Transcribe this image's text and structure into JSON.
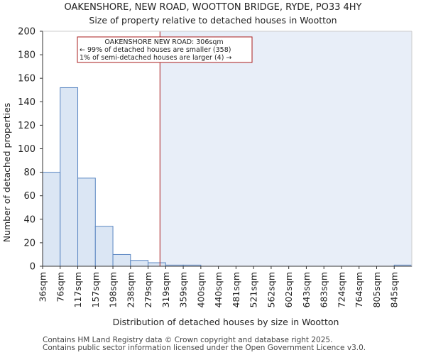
{
  "chart_data": {
    "type": "bar",
    "title_line1": "OAKENSHORE, NEW ROAD, WOOTTON BRIDGE, RYDE, PO33 4HY",
    "title_line2": "Size of property relative to detached houses in Wootton",
    "xlabel": "Distribution of detached houses by size in Wootton",
    "ylabel": "Number of detached properties",
    "categories": [
      "36sqm",
      "76sqm",
      "117sqm",
      "157sqm",
      "198sqm",
      "238sqm",
      "279sqm",
      "319sqm",
      "359sqm",
      "400sqm",
      "440sqm",
      "481sqm",
      "521sqm",
      "562sqm",
      "602sqm",
      "643sqm",
      "683sqm",
      "724sqm",
      "764sqm",
      "805sqm",
      "845sqm"
    ],
    "values": [
      80,
      152,
      75,
      34,
      10,
      5,
      3,
      1,
      1,
      0,
      0,
      0,
      0,
      0,
      0,
      0,
      0,
      0,
      0,
      0,
      1
    ],
    "ylim": [
      0,
      200
    ],
    "yticks": [
      0,
      20,
      40,
      60,
      80,
      100,
      120,
      140,
      160,
      180,
      200
    ],
    "marker_value_sqm": 306,
    "annotation": {
      "line1": "OAKENSHORE NEW ROAD: 306sqm",
      "line2": "← 99% of detached houses are smaller (358)",
      "line3": "1% of semi-detached houses are larger (4) →"
    },
    "colors": {
      "bar_fill": "#dbe6f4",
      "bar_stroke": "#5a86c2",
      "highlight_region": "#e8eef8",
      "marker": "#aa1c1c",
      "axis": "#333333"
    }
  },
  "footer": {
    "line1": "Contains HM Land Registry data © Crown copyright and database right 2025.",
    "line2": "Contains public sector information licensed under the Open Government Licence v3.0."
  }
}
